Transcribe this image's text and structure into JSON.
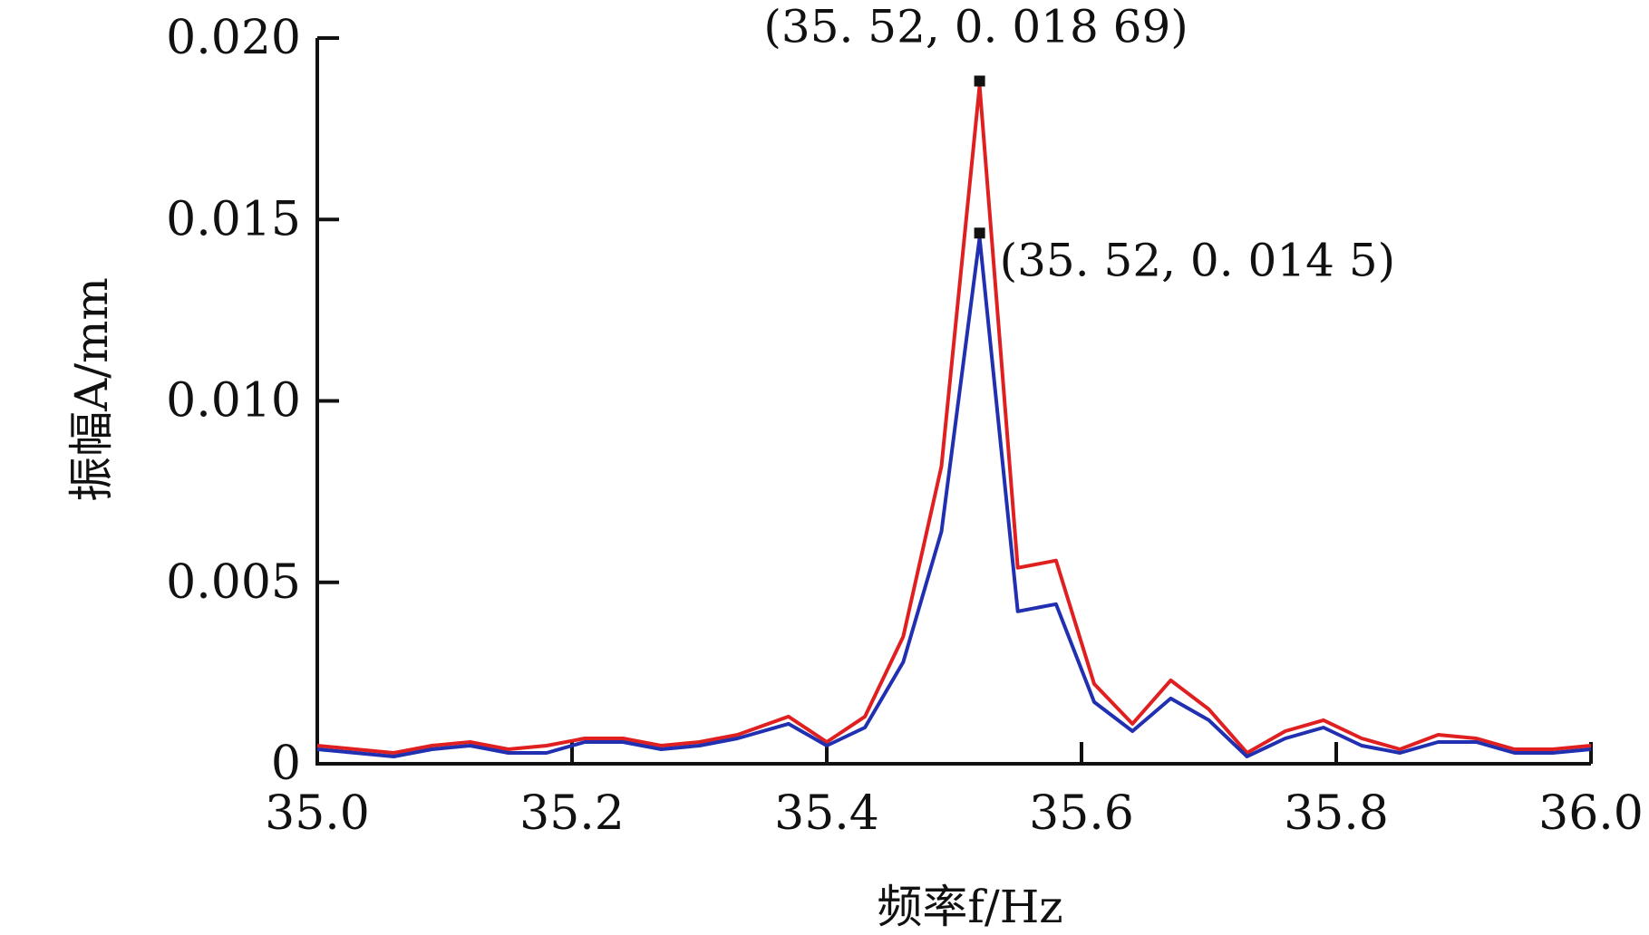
{
  "chart_data": {
    "type": "line",
    "xlabel": "频率f/Hz",
    "ylabel": "振幅A/mm",
    "xlim": [
      35.0,
      36.0
    ],
    "ylim": [
      0,
      0.02
    ],
    "x_ticks": [
      "35.0",
      "35.2",
      "35.4",
      "35.6",
      "35.8",
      "36.0"
    ],
    "y_ticks": [
      "0",
      "0.005",
      "0.010",
      "0.015",
      "0.020"
    ],
    "grid": false,
    "x": [
      35.0,
      35.03,
      35.06,
      35.09,
      35.12,
      35.15,
      35.18,
      35.21,
      35.24,
      35.27,
      35.3,
      35.33,
      35.37,
      35.4,
      35.43,
      35.46,
      35.49,
      35.52,
      35.55,
      35.58,
      35.61,
      35.64,
      35.67,
      35.7,
      35.73,
      35.76,
      35.79,
      35.82,
      35.85,
      35.88,
      35.91,
      35.94,
      35.97,
      36.0
    ],
    "series": [
      {
        "color": "#e02020",
        "values": [
          0.0005,
          0.0004,
          0.0003,
          0.0005,
          0.0006,
          0.0004,
          0.0005,
          0.0007,
          0.0007,
          0.0005,
          0.0006,
          0.0008,
          0.0013,
          0.0006,
          0.0013,
          0.0035,
          0.0082,
          0.01869,
          0.0054,
          0.0056,
          0.0022,
          0.0011,
          0.0023,
          0.0015,
          0.0003,
          0.0009,
          0.0012,
          0.0007,
          0.0004,
          0.0008,
          0.0007,
          0.0004,
          0.0004,
          0.0005
        ]
      },
      {
        "color": "#2030b0",
        "values": [
          0.0004,
          0.0003,
          0.0002,
          0.0004,
          0.0005,
          0.0003,
          0.0003,
          0.0006,
          0.0006,
          0.0004,
          0.0005,
          0.0007,
          0.0011,
          0.0005,
          0.001,
          0.0028,
          0.0064,
          0.0145,
          0.0042,
          0.0044,
          0.0017,
          0.0009,
          0.0018,
          0.0012,
          0.0002,
          0.0007,
          0.001,
          0.0005,
          0.0003,
          0.0006,
          0.0006,
          0.0003,
          0.0003,
          0.0004
        ]
      }
    ],
    "annotations": [
      {
        "x": 35.52,
        "y": 0.01869,
        "text": "(35. 52, 0. 018  69)"
      },
      {
        "x": 35.52,
        "y": 0.0145,
        "text": "(35. 52, 0. 014  5)"
      }
    ]
  }
}
